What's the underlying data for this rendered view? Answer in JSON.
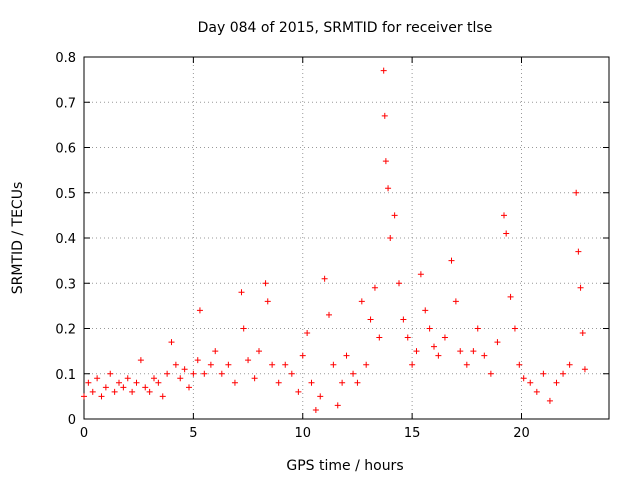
{
  "chart_data": {
    "type": "scatter",
    "title": "Day 084 of 2015, SRMTID for receiver tlse",
    "xlabel": "GPS time / hours",
    "ylabel": "SRMTID / TECUs",
    "xlim": [
      0,
      24
    ],
    "ylim": [
      0,
      0.8
    ],
    "xticks": [
      "0",
      "5",
      "10",
      "15",
      "20"
    ],
    "yticks": [
      "0",
      "0.1",
      "0.2",
      "0.3",
      "0.4",
      "0.5",
      "0.6",
      "0.7",
      "0.8"
    ],
    "grid": true,
    "marker": "+",
    "color": "#ff0000",
    "series": [
      {
        "name": "SRMTID",
        "points": [
          [
            0.0,
            0.05
          ],
          [
            0.2,
            0.08
          ],
          [
            0.4,
            0.06
          ],
          [
            0.6,
            0.09
          ],
          [
            0.8,
            0.05
          ],
          [
            1.0,
            0.07
          ],
          [
            1.2,
            0.1
          ],
          [
            1.4,
            0.06
          ],
          [
            1.6,
            0.08
          ],
          [
            1.8,
            0.07
          ],
          [
            2.0,
            0.09
          ],
          [
            2.2,
            0.06
          ],
          [
            2.4,
            0.08
          ],
          [
            2.6,
            0.13
          ],
          [
            2.8,
            0.07
          ],
          [
            3.0,
            0.06
          ],
          [
            3.2,
            0.09
          ],
          [
            3.4,
            0.08
          ],
          [
            3.6,
            0.05
          ],
          [
            3.8,
            0.1
          ],
          [
            4.0,
            0.17
          ],
          [
            4.2,
            0.12
          ],
          [
            4.4,
            0.09
          ],
          [
            4.6,
            0.11
          ],
          [
            4.8,
            0.07
          ],
          [
            5.0,
            0.1
          ],
          [
            5.2,
            0.13
          ],
          [
            5.3,
            0.24
          ],
          [
            5.5,
            0.1
          ],
          [
            5.8,
            0.12
          ],
          [
            6.0,
            0.15
          ],
          [
            6.3,
            0.1
          ],
          [
            6.6,
            0.12
          ],
          [
            6.9,
            0.08
          ],
          [
            7.2,
            0.28
          ],
          [
            7.3,
            0.2
          ],
          [
            7.5,
            0.13
          ],
          [
            7.8,
            0.09
          ],
          [
            8.0,
            0.15
          ],
          [
            8.3,
            0.3
          ],
          [
            8.4,
            0.26
          ],
          [
            8.6,
            0.12
          ],
          [
            8.9,
            0.08
          ],
          [
            9.2,
            0.12
          ],
          [
            9.5,
            0.1
          ],
          [
            9.8,
            0.06
          ],
          [
            10.0,
            0.14
          ],
          [
            10.2,
            0.19
          ],
          [
            10.4,
            0.08
          ],
          [
            10.6,
            0.02
          ],
          [
            10.8,
            0.05
          ],
          [
            11.0,
            0.31
          ],
          [
            11.2,
            0.23
          ],
          [
            11.4,
            0.12
          ],
          [
            11.6,
            0.03
          ],
          [
            11.8,
            0.08
          ],
          [
            12.0,
            0.14
          ],
          [
            12.3,
            0.1
          ],
          [
            12.5,
            0.08
          ],
          [
            12.7,
            0.26
          ],
          [
            12.9,
            0.12
          ],
          [
            13.1,
            0.22
          ],
          [
            13.3,
            0.29
          ],
          [
            13.5,
            0.18
          ],
          [
            13.7,
            0.77
          ],
          [
            13.75,
            0.67
          ],
          [
            13.8,
            0.57
          ],
          [
            13.9,
            0.51
          ],
          [
            14.0,
            0.4
          ],
          [
            14.2,
            0.45
          ],
          [
            14.4,
            0.3
          ],
          [
            14.6,
            0.22
          ],
          [
            14.8,
            0.18
          ],
          [
            15.0,
            0.12
          ],
          [
            15.2,
            0.15
          ],
          [
            15.4,
            0.32
          ],
          [
            15.6,
            0.24
          ],
          [
            15.8,
            0.2
          ],
          [
            16.0,
            0.16
          ],
          [
            16.2,
            0.14
          ],
          [
            16.5,
            0.18
          ],
          [
            16.8,
            0.35
          ],
          [
            17.0,
            0.26
          ],
          [
            17.2,
            0.15
          ],
          [
            17.5,
            0.12
          ],
          [
            17.8,
            0.15
          ],
          [
            18.0,
            0.2
          ],
          [
            18.3,
            0.14
          ],
          [
            18.6,
            0.1
          ],
          [
            18.9,
            0.17
          ],
          [
            19.2,
            0.45
          ],
          [
            19.3,
            0.41
          ],
          [
            19.5,
            0.27
          ],
          [
            19.7,
            0.2
          ],
          [
            19.9,
            0.12
          ],
          [
            20.1,
            0.09
          ],
          [
            20.4,
            0.08
          ],
          [
            20.7,
            0.06
          ],
          [
            21.0,
            0.1
          ],
          [
            21.3,
            0.04
          ],
          [
            21.6,
            0.08
          ],
          [
            21.9,
            0.1
          ],
          [
            22.2,
            0.12
          ],
          [
            22.5,
            0.5
          ],
          [
            22.6,
            0.37
          ],
          [
            22.7,
            0.29
          ],
          [
            22.8,
            0.19
          ],
          [
            22.9,
            0.11
          ]
        ]
      }
    ]
  }
}
